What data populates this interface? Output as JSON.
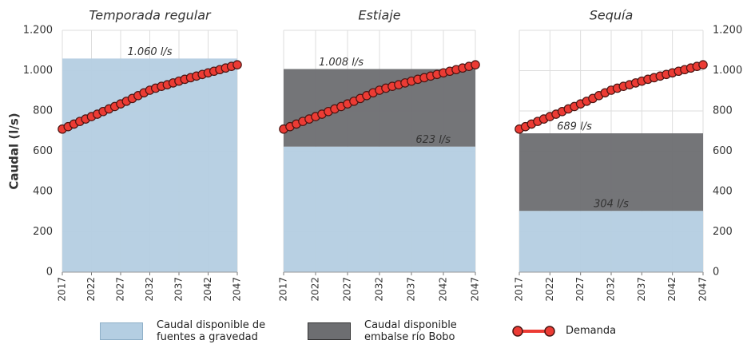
{
  "chart_data": [
    {
      "type": "area",
      "title": "Temporada regular",
      "ylabel": "Caudal (l/s)",
      "yaxis": "left",
      "x": [
        2017,
        2018,
        2019,
        2020,
        2021,
        2022,
        2023,
        2024,
        2025,
        2026,
        2027,
        2028,
        2029,
        2030,
        2031,
        2032,
        2033,
        2034,
        2035,
        2036,
        2037,
        2038,
        2039,
        2040,
        2041,
        2042,
        2043,
        2044,
        2045,
        2046,
        2047
      ],
      "xlim": [
        2017,
        2047
      ],
      "xticks": [
        2017,
        2022,
        2027,
        2032,
        2037,
        2042,
        2047
      ],
      "ylim": [
        0,
        1200
      ],
      "yticks": [
        0,
        200,
        400,
        600,
        800,
        {
          "value": 1000,
          "label": "1.000"
        },
        {
          "value": 1200,
          "label": "1.200"
        }
      ],
      "grid": true,
      "series": [
        {
          "color": "#b4cee2",
          "value": 1060
        },
        {
          "color": "#ec3b34",
          "values": [
            710,
            722,
            735,
            748,
            760,
            772,
            784,
            797,
            810,
            822,
            835,
            848,
            862,
            876,
            890,
            903,
            913,
            922,
            930,
            939,
            948,
            957,
            965,
            973,
            981,
            989,
            997,
            1005,
            1013,
            1021,
            1029
          ]
        }
      ],
      "annotations": [
        {
          "text": "1.060 l/s",
          "value": 1060
        }
      ]
    },
    {
      "type": "area",
      "title": "Estiaje",
      "yaxis": "none",
      "x": [
        2017,
        2018,
        2019,
        2020,
        2021,
        2022,
        2023,
        2024,
        2025,
        2026,
        2027,
        2028,
        2029,
        2030,
        2031,
        2032,
        2033,
        2034,
        2035,
        2036,
        2037,
        2038,
        2039,
        2040,
        2041,
        2042,
        2043,
        2044,
        2045,
        2046,
        2047
      ],
      "xlim": [
        2017,
        2047
      ],
      "xticks": [
        2017,
        2022,
        2027,
        2032,
        2037,
        2042,
        2047
      ],
      "ylim": [
        0,
        1200
      ],
      "yticks": [
        0,
        200,
        400,
        600,
        800,
        1000,
        1200
      ],
      "grid": true,
      "series": [
        {
          "name": "Caudal disponible de fuentes a gravedad",
          "color": "#b4cee2",
          "value": 623
        },
        {
          "name": "Caudal disponible embalse río Bobo",
          "color": "#6d6e71",
          "value": 385
        },
        {
          "name": "Demanda",
          "color": "#ec3b34",
          "values": [
            710,
            722,
            735,
            748,
            760,
            772,
            784,
            797,
            810,
            822,
            835,
            848,
            862,
            876,
            890,
            903,
            913,
            922,
            930,
            939,
            948,
            957,
            965,
            973,
            981,
            989,
            997,
            1005,
            1013,
            1021,
            1029
          ]
        }
      ],
      "annotations": [
        {
          "text": "1.008 l/s",
          "value": 1008
        },
        {
          "text": "623 l/s",
          "value": 623
        }
      ]
    },
    {
      "type": "area",
      "title": "Sequía",
      "yaxis": "right",
      "x": [
        2017,
        2018,
        2019,
        2020,
        2021,
        2022,
        2023,
        2024,
        2025,
        2026,
        2027,
        2028,
        2029,
        2030,
        2031,
        2032,
        2033,
        2034,
        2035,
        2036,
        2037,
        2038,
        2039,
        2040,
        2041,
        2042,
        2043,
        2044,
        2045,
        2046,
        2047
      ],
      "xlim": [
        2017,
        2047
      ],
      "xticks": [
        2017,
        2022,
        2027,
        2032,
        2037,
        2042,
        2047
      ],
      "ylim": [
        0,
        1200
      ],
      "yticks": [
        0,
        200,
        400,
        600,
        800,
        {
          "value": 1000,
          "label": "1.000"
        },
        {
          "value": 1200,
          "label": "1.200"
        }
      ],
      "grid": true,
      "series": [
        {
          "color": "#b4cee2",
          "value": 304
        },
        {
          "color": "#6d6e71",
          "value": 385
        },
        {
          "color": "#ec3b34",
          "values": [
            710,
            722,
            735,
            748,
            760,
            772,
            784,
            797,
            810,
            822,
            835,
            848,
            862,
            876,
            890,
            903,
            913,
            922,
            930,
            939,
            948,
            957,
            965,
            973,
            981,
            989,
            997,
            1005,
            1013,
            1021,
            1029
          ]
        }
      ],
      "annotations": [
        {
          "text": "689 l/s",
          "value": 689
        },
        {
          "text": "304 l/s",
          "value": 304
        }
      ]
    }
  ]
}
